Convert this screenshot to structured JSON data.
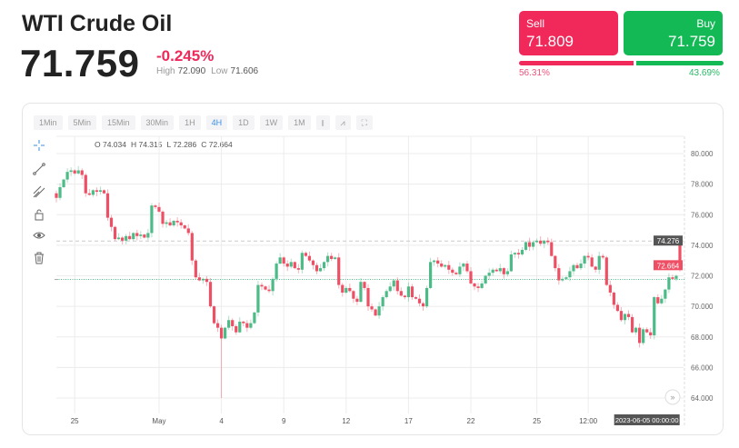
{
  "header": {
    "title": "WTI Crude Oil",
    "price": "71.759",
    "change": "-0.245%",
    "high_label": "High",
    "high": "72.090",
    "low_label": "Low",
    "low": "71.606"
  },
  "trade": {
    "sell_label": "Sell",
    "sell_price": "71.809",
    "buy_label": "Buy",
    "buy_price": "71.759",
    "sell_pct": "56.31%",
    "buy_pct": "43.69%",
    "sell_fraction": 0.5631,
    "colors": {
      "sell": "#f0295a",
      "buy": "#13b955"
    }
  },
  "toolbar": {
    "timeframes": [
      "1Min",
      "5Min",
      "15Min",
      "30Min",
      "1H",
      "4H",
      "1D",
      "1W",
      "1M"
    ],
    "active": "4H",
    "icons": [
      "candle-type-icon",
      "indicators-icon",
      "fullscreen-icon"
    ]
  },
  "ohlc": {
    "o": "O 74.034",
    "h": "H 74.315",
    "l": "L 72.286",
    "c": "C 72.664"
  },
  "tools": [
    "crosshair-icon",
    "trend-line-icon",
    "multi-line-icon",
    "lock-icon",
    "eye-icon",
    "trash-icon"
  ],
  "chart_data": {
    "type": "candlestick",
    "ylim": [
      63,
      81
    ],
    "yticks": [
      "80.000",
      "78.000",
      "76.000",
      "74.000",
      "72.000",
      "70.000",
      "68.000",
      "66.000",
      "64.000"
    ],
    "ytick_values": [
      80,
      78,
      76,
      74,
      72,
      70,
      68,
      66,
      64
    ],
    "xticks": [
      {
        "label": "25",
        "i": 5
      },
      {
        "label": "May",
        "i": 28
      },
      {
        "label": "4",
        "i": 45
      },
      {
        "label": "9",
        "i": 62
      },
      {
        "label": "12",
        "i": 79
      },
      {
        "label": "17",
        "i": 96
      },
      {
        "label": "22",
        "i": 113
      },
      {
        "label": "25",
        "i": 131
      },
      {
        "label": "12:00",
        "i": 145
      }
    ],
    "crosshair_time": "2023-06-05 00:00:00",
    "crosshair_i": 161,
    "high_line": {
      "value": 74.276,
      "label": "74.276"
    },
    "last": {
      "value": 72.664,
      "label": "72.664"
    },
    "current_price": 71.759,
    "up_color": "#4cbb87",
    "down_color": "#ef4f64",
    "closes": [
      77.1,
      77.8,
      78.3,
      78.8,
      78.9,
      78.7,
      78.9,
      78.6,
      77.4,
      77.3,
      77.6,
      77.5,
      77.6,
      77.4,
      75.8,
      75.2,
      74.4,
      74.5,
      74.3,
      74.6,
      74.4,
      74.8,
      74.6,
      74.7,
      74.5,
      74.8,
      76.6,
      76.5,
      76.2,
      75.4,
      75.5,
      75.3,
      75.6,
      75.5,
      75.3,
      75.1,
      74.8,
      73.0,
      71.9,
      71.7,
      71.8,
      71.6,
      70.0,
      68.9,
      68.6,
      67.9,
      68.6,
      69.1,
      68.7,
      68.3,
      69.0,
      68.9,
      68.6,
      68.9,
      69.6,
      71.4,
      71.3,
      71.1,
      71.0,
      71.8,
      72.8,
      73.2,
      72.8,
      72.6,
      72.9,
      72.5,
      72.4,
      73.5,
      73.3,
      73.0,
      72.7,
      72.3,
      72.5,
      72.9,
      73.3,
      73.1,
      73.2,
      71.4,
      70.9,
      71.2,
      71.0,
      70.5,
      70.3,
      71.6,
      71.2,
      70.0,
      69.8,
      69.4,
      70.0,
      70.6,
      71.0,
      71.3,
      71.7,
      71.0,
      70.7,
      70.6,
      71.3,
      70.6,
      70.5,
      70.2,
      70.0,
      71.2,
      72.9,
      73.0,
      72.8,
      72.6,
      72.7,
      72.4,
      72.2,
      72.1,
      72.6,
      72.8,
      72.3,
      71.5,
      71.3,
      71.2,
      71.5,
      72.0,
      72.2,
      72.4,
      72.3,
      72.5,
      72.1,
      72.3,
      73.4,
      73.5,
      73.4,
      73.7,
      74.2,
      73.9,
      74.2,
      74.3,
      74.1,
      74.3,
      74.2,
      73.3,
      72.5,
      71.7,
      71.8,
      71.9,
      72.3,
      72.7,
      72.5,
      72.8,
      73.3,
      73.2,
      72.6,
      72.4,
      73.3,
      73.2,
      71.4,
      70.9,
      70.1,
      69.7,
      69.1,
      69.5,
      69.3,
      68.3,
      68.6,
      67.6,
      68.5,
      68.3,
      68.1,
      70.6,
      70.2,
      70.5,
      71.1,
      71.9,
      71.8,
      72.0,
      72.664
    ],
    "last_candle": {
      "open": 74.034,
      "high": 74.315,
      "low": 72.286,
      "close": 72.664
    },
    "long_wick": {
      "i": 45,
      "low": 64.0
    }
  }
}
